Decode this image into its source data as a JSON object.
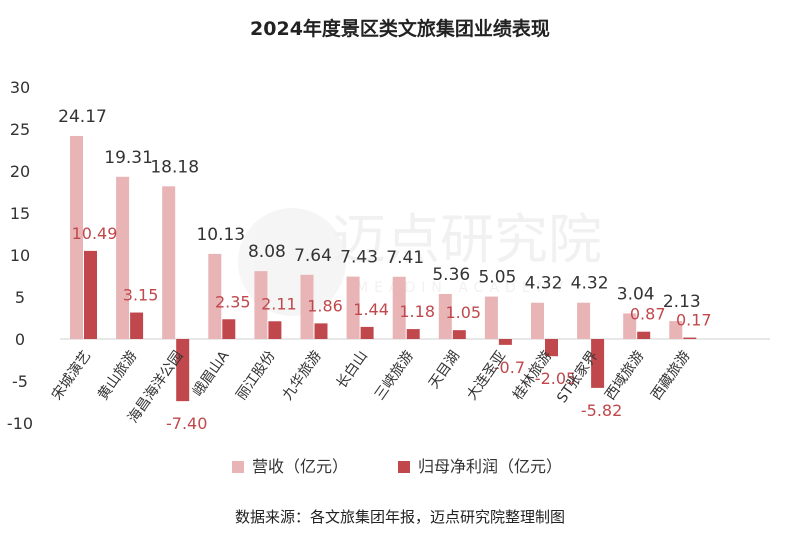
{
  "chart_data": {
    "type": "bar",
    "title": "2024年度景区类文旅集团业绩表现",
    "categories": [
      "宋城演艺",
      "黄山旅游",
      "海昌海洋公园",
      "峨眉山A",
      "丽江股份",
      "九华旅游",
      "长白山",
      "三峡旅游",
      "天目湖",
      "大连圣亚",
      "桂林旅游",
      "ST张家界",
      "西域旅游",
      "西藏旅游"
    ],
    "series": [
      {
        "name": "营收（亿元）",
        "color": "#e8b4b6",
        "values": [
          24.17,
          19.31,
          18.18,
          10.13,
          8.08,
          7.64,
          7.43,
          7.41,
          5.36,
          5.05,
          4.32,
          4.32,
          3.04,
          2.13
        ],
        "labels": [
          "24.17",
          "19.31",
          "18.18",
          "10.13",
          "8.08",
          "7.64",
          "7.43",
          "7.41",
          "5.36",
          "5.05",
          "4.32",
          "4.32",
          "3.04",
          "2.13"
        ]
      },
      {
        "name": "归母净利润（亿元）",
        "color": "#c0484c",
        "values": [
          10.49,
          3.15,
          -7.4,
          2.35,
          2.11,
          1.86,
          1.44,
          1.18,
          1.05,
          -0.7,
          -2.05,
          -5.82,
          0.87,
          0.17
        ],
        "labels": [
          "10.49",
          "3.15",
          "-7.40",
          "2.35",
          "2.11",
          "1.86",
          "1.44",
          "1.18",
          "1.05",
          "-0.7",
          "-2.05",
          "-5.82",
          "0.87",
          "0.17"
        ]
      }
    ],
    "yticks": [
      "30",
      "25",
      "20",
      "15",
      "10",
      "5",
      "0",
      "-5",
      "-10"
    ],
    "ylim": [
      -10,
      30
    ],
    "legend_position": "bottom",
    "grid": false
  },
  "watermark": {
    "cn": "迈点研究院",
    "en": "MEADIN ACADEMY"
  },
  "source": "数据来源：各文旅集团年报，迈点研究院整理制图"
}
